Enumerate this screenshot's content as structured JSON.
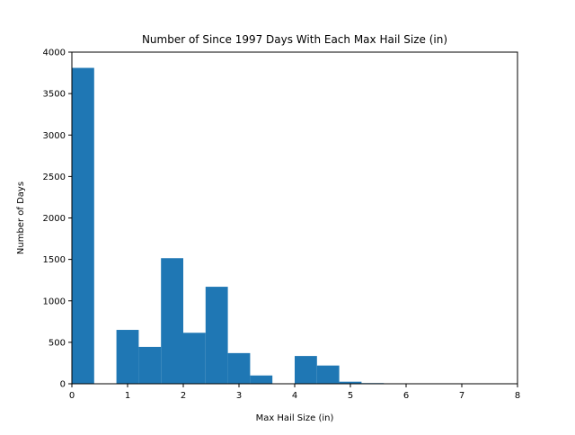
{
  "chart_data": {
    "type": "bar",
    "title": "Number of Since 1997 Days With Each Max Hail Size (in)",
    "xlabel": "Max Hail Size (in)",
    "ylabel": "Number of Days",
    "xlim": [
      0,
      8
    ],
    "ylim": [
      0,
      4000
    ],
    "xticks": [
      0,
      1,
      2,
      3,
      4,
      5,
      6,
      7,
      8
    ],
    "yticks": [
      0,
      500,
      1000,
      1500,
      2000,
      2500,
      3000,
      3500,
      4000
    ],
    "bin_edges": [
      0,
      0.4,
      0.8,
      1.2,
      1.6,
      2.0,
      2.4,
      2.8,
      3.2,
      3.6,
      4.0,
      4.4,
      4.8,
      5.2,
      5.6,
      6.0,
      6.4,
      6.8,
      7.2,
      7.6,
      8.0
    ],
    "values": [
      3810,
      0,
      650,
      445,
      1515,
      615,
      1170,
      370,
      100,
      5,
      335,
      220,
      25,
      8,
      0,
      0,
      0,
      0,
      0,
      0
    ],
    "bar_color": "#1f77b4",
    "grid": false,
    "legend": "none"
  }
}
